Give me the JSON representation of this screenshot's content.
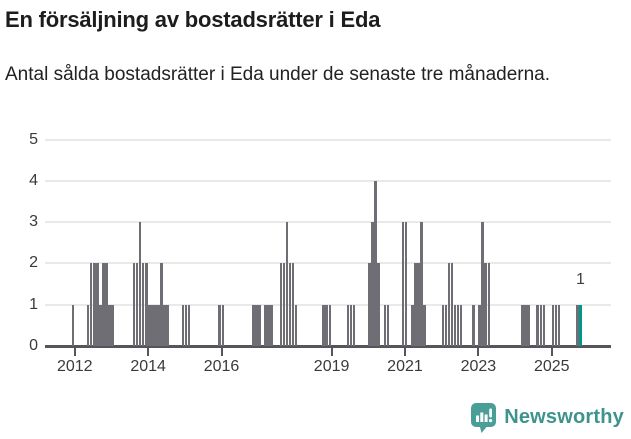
{
  "header": {
    "title": "En försäljning av bostadsrätter i Eda",
    "subtitle": "Antal sålda bostadsrätter i Eda under de senaste tre månaderna."
  },
  "chart_data": {
    "type": "bar",
    "title": "En försäljning av bostadsrätter i Eda",
    "subtitle": "Antal sålda bostadsrätter i Eda under de senaste tre månaderna.",
    "ylabel": "",
    "xlabel": "",
    "ylim": [
      0,
      5
    ],
    "y_ticks": [
      0,
      1,
      2,
      3,
      4,
      5
    ],
    "x_ticks": [
      {
        "label": "2012",
        "year": 2012
      },
      {
        "label": "2014",
        "year": 2014
      },
      {
        "label": "2016",
        "year": 2016
      },
      {
        "label": "2019",
        "year": 2019
      },
      {
        "label": "2021",
        "year": 2021
      },
      {
        "label": "2023",
        "year": 2023
      },
      {
        "label": "2025",
        "year": 2025
      }
    ],
    "grid": "horizontal",
    "bar_color": "#6e6e74",
    "highlight_color": "#00988b",
    "series": {
      "name": "Antal sålda bostadsrätter (rullande tre månader)",
      "start": "2011-10",
      "values": [
        0,
        0,
        1,
        0,
        0,
        0,
        0,
        1,
        2,
        2,
        2,
        1,
        2,
        2,
        1,
        1,
        0,
        0,
        0,
        0,
        0,
        0,
        2,
        2,
        3,
        2,
        2,
        1,
        1,
        1,
        1,
        2,
        1,
        1,
        0,
        0,
        0,
        0,
        1,
        1,
        1,
        0,
        0,
        0,
        0,
        0,
        0,
        0,
        0,
        0,
        1,
        1,
        0,
        0,
        0,
        0,
        0,
        0,
        0,
        0,
        0,
        1,
        1,
        1,
        0,
        1,
        1,
        1,
        0,
        0,
        2,
        2,
        3,
        2,
        2,
        1,
        0,
        0,
        0,
        0,
        0,
        0,
        0,
        0,
        1,
        1,
        1,
        0,
        0,
        0,
        0,
        0,
        1,
        1,
        1,
        0,
        0,
        0,
        0,
        2,
        3,
        4,
        2,
        0,
        1,
        1,
        0,
        0,
        0,
        0,
        3,
        3,
        0,
        1,
        2,
        2,
        3,
        1,
        0,
        0,
        0,
        0,
        0,
        1,
        1,
        2,
        2,
        1,
        1,
        1,
        0,
        0,
        0,
        1,
        0,
        1,
        3,
        2,
        2,
        0,
        0,
        0,
        0,
        0,
        0,
        0,
        0,
        0,
        0,
        1,
        1,
        1,
        0,
        0,
        1,
        1,
        1,
        0,
        0,
        1,
        1,
        1,
        0,
        0,
        0,
        0,
        0,
        1,
        1
      ]
    },
    "highlight": {
      "month": "2025-10",
      "value": 1,
      "label": "1"
    }
  },
  "footer": {
    "brand": "Newsworthy",
    "logo_icon": "speech-bubble-bar-chart-exclamation",
    "brand_color": "#3f938d"
  }
}
